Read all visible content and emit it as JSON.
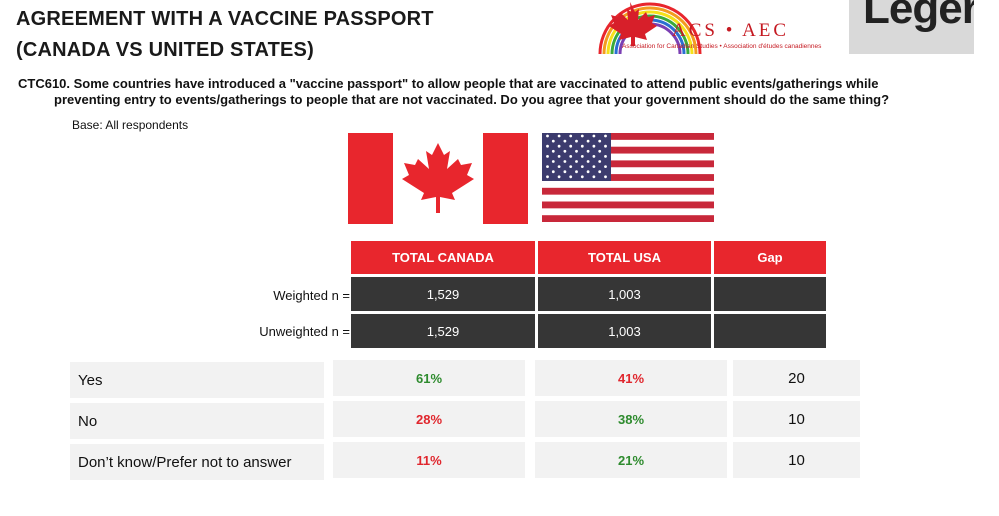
{
  "title_line1": "AGREEMENT WITH A VACCINE PASSPORT",
  "title_line2": "(CANADA VS UNITED STATES)",
  "question_line1": "CTC610. Some countries have introduced a \"vaccine passport\" to allow people that are vaccinated to attend public events/gatherings while",
  "question_line2": "preventing entry to events/gatherings to people that are not vaccinated. Do you agree that your government should do the same thing?",
  "base": "Base: All respondents",
  "logos": {
    "acs_main": "ACS • AEC",
    "acs_sub": "Association for Canadian Studies • Association d'études canadiennes",
    "leger": "Leger"
  },
  "colors": {
    "header_red": "#e8262d",
    "dark_cell": "#363636",
    "positive": "#2e8b2e",
    "negative": "#e0262d"
  },
  "headers": {
    "canada": "TOTAL CANADA",
    "usa": "TOTAL USA",
    "gap": "Gap"
  },
  "sample": [
    {
      "label": "Weighted n =",
      "canada": "1,529",
      "usa": "1,003",
      "gap": ""
    },
    {
      "label": "Unweighted n =",
      "canada": "1,529",
      "usa": "1,003",
      "gap": ""
    }
  ],
  "rows": [
    {
      "label": "Yes",
      "canada": "61%",
      "usa": "41%",
      "gap": "20"
    },
    {
      "label": "No",
      "canada": "28%",
      "usa": "38%",
      "gap": "10"
    },
    {
      "label": "Don’t know/Prefer not to answer",
      "canada": "11%",
      "usa": "21%",
      "gap": "10"
    }
  ]
}
